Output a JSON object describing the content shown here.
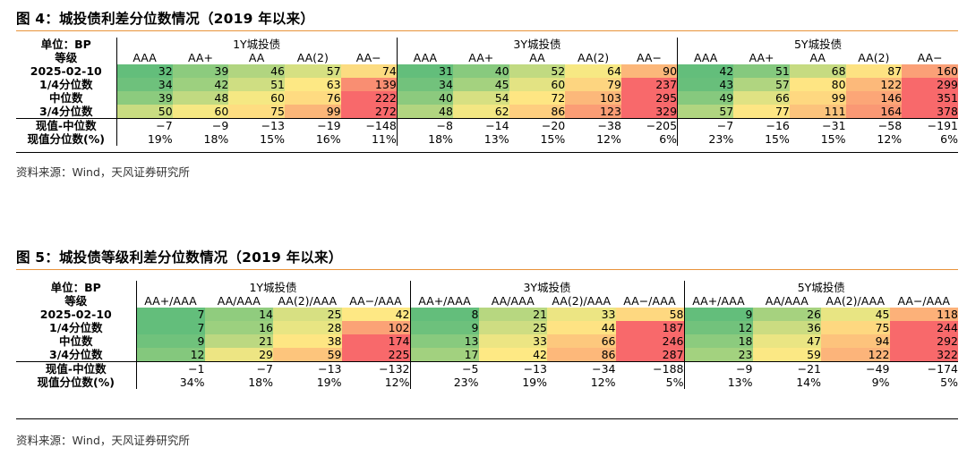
{
  "figures": [
    {
      "title": "图 4：城投债利差分位数情况（2019 年以来）",
      "source": "资料来源：Wind，天风证券研究所",
      "unit_label": "单位：BP",
      "grade_label": "等级",
      "groups": [
        "1Y城投债",
        "3Y城投债",
        "5Y城投债"
      ],
      "subcols": [
        [
          "AAA",
          "AA+",
          "AA",
          "AA(2)",
          "AA−"
        ],
        [
          "AAA",
          "AA+",
          "AA",
          "AA(2)",
          "AA−"
        ],
        [
          "AAA",
          "AA+",
          "AA",
          "AA(2)",
          "AA−"
        ]
      ],
      "rows": [
        {
          "label": "2025-02-10",
          "values": [
            32,
            39,
            46,
            57,
            74,
            31,
            40,
            52,
            64,
            90,
            42,
            51,
            68,
            87,
            160
          ],
          "colors": [
            "#63be7b",
            "#8ccb7e",
            "#b1d580",
            "#d6e082",
            "#fcdc81",
            "#63be7b",
            "#88ca7e",
            "#c1da81",
            "#f7e883",
            "#fcb77a",
            "#63be7b",
            "#85c97e",
            "#c6db81",
            "#fde282",
            "#fba077"
          ]
        },
        {
          "label": "1/4分位数",
          "values": [
            34,
            42,
            51,
            63,
            139,
            34,
            45,
            60,
            79,
            237,
            43,
            57,
            80,
            122,
            299
          ],
          "colors": [
            "#6ec17c",
            "#9dd07f",
            "#cfde82",
            "#fde884",
            "#f98e72",
            "#72c27c",
            "#a4d27f",
            "#e3e383",
            "#fdd580",
            "#f8696b",
            "#68bf7b",
            "#b0d580",
            "#fee583",
            "#fcb97a",
            "#f8696b"
          ]
        },
        {
          "label": "中位数",
          "values": [
            39,
            48,
            60,
            76,
            222,
            40,
            54,
            72,
            103,
            295,
            49,
            66,
            99,
            146,
            351
          ],
          "colors": [
            "#8ccb7e",
            "#c1da81",
            "#f5e883",
            "#fedb81",
            "#f8696b",
            "#8cca7e",
            "#d7e082",
            "#fee683",
            "#fcb87a",
            "#f8696b",
            "#86c97e",
            "#dfe283",
            "#fed880",
            "#fca677",
            "#f8696b"
          ]
        },
        {
          "label": "3/4分位数",
          "values": [
            50,
            60,
            75,
            99,
            272,
            48,
            62,
            86,
            123,
            329,
            57,
            77,
            111,
            164,
            378
          ],
          "colors": [
            "#c9dc81",
            "#f6e883",
            "#fedd81",
            "#fbb679",
            "#f8696b",
            "#b2d580",
            "#f3e783",
            "#fece7f",
            "#fb9d75",
            "#f8696b",
            "#b0d580",
            "#fde684",
            "#fcc37c",
            "#fa9874",
            "#f8696b"
          ]
        }
      ],
      "diff_row": {
        "label": "现值-中位数",
        "values": [
          "−7",
          "−9",
          "−13",
          "−19",
          "−148",
          "−8",
          "−14",
          "−20",
          "−38",
          "−205",
          "−7",
          "−16",
          "−31",
          "−58",
          "−191"
        ]
      },
      "pct_row": {
        "label": "现值分位数(%)",
        "values": [
          "19%",
          "18%",
          "15%",
          "16%",
          "11%",
          "18%",
          "13%",
          "15%",
          "12%",
          "6%",
          "23%",
          "15%",
          "15%",
          "12%",
          "6%"
        ]
      }
    },
    {
      "title": "图 5：城投债等级利差分位数情况（2019 年以来）",
      "source": "资料来源：Wind，天风证券研究所",
      "unit_label": "单位：BP",
      "grade_label": "等级",
      "groups": [
        "1Y城投债",
        "3Y城投债",
        "5Y城投债"
      ],
      "subcols": [
        [
          "AA+/AAA",
          "AA/AAA",
          "AA(2)/AAA",
          "AA−/AAA"
        ],
        [
          "AA+/AAA",
          "AA/AAA",
          "AA(2)/AAA",
          "AA−/AAA"
        ],
        [
          "AA+/AAA",
          "AA/AAA",
          "AA(2)/AAA",
          "AA−/AAA"
        ]
      ],
      "rows": [
        {
          "label": "2025-02-10",
          "values": [
            7,
            14,
            25,
            42,
            8,
            21,
            33,
            58,
            9,
            26,
            45,
            118
          ],
          "colors": [
            "#63be7b",
            "#90cc7e",
            "#d7e082",
            "#fee884",
            "#63be7b",
            "#b7d780",
            "#ece583",
            "#fed880",
            "#63be7b",
            "#a6d27f",
            "#e8e583",
            "#fcb179"
          ]
        },
        {
          "label": "1/4分位数",
          "values": [
            7,
            16,
            28,
            102,
            9,
            25,
            44,
            187,
            12,
            36,
            75,
            244
          ],
          "colors": [
            "#63be7b",
            "#9cd07f",
            "#e8e583",
            "#fba276",
            "#6dc17c",
            "#cedd82",
            "#fee383",
            "#f8696b",
            "#72c27c",
            "#cbdc81",
            "#fed880",
            "#f8696b"
          ]
        },
        {
          "label": "中位数",
          "values": [
            9,
            21,
            38,
            174,
            13,
            33,
            66,
            246,
            18,
            47,
            94,
            292
          ],
          "colors": [
            "#70c27c",
            "#bcd881",
            "#fee683",
            "#f8696b",
            "#88ca7e",
            "#ece583",
            "#fdc87d",
            "#f8696b",
            "#8ccb7e",
            "#eae583",
            "#fdc37c",
            "#f8696b"
          ]
        },
        {
          "label": "3/4分位数",
          "values": [
            12,
            29,
            59,
            225,
            17,
            42,
            86,
            287,
            23,
            59,
            122,
            322
          ],
          "colors": [
            "#84c87d",
            "#ede583",
            "#fdc57c",
            "#f8696b",
            "#a2d17f",
            "#fee984",
            "#fdb87a",
            "#f8696b",
            "#a3d27f",
            "#fbe884",
            "#fcb47a",
            "#f8696b"
          ]
        }
      ],
      "diff_row": {
        "label": "现值-中位数",
        "values": [
          "−1",
          "−7",
          "−13",
          "−132",
          "−5",
          "−13",
          "−34",
          "−188",
          "−9",
          "−21",
          "−49",
          "−174"
        ]
      },
      "pct_row": {
        "label": "现值分位数(%)",
        "values": [
          "34%",
          "18%",
          "19%",
          "12%",
          "23%",
          "19%",
          "12%",
          "5%",
          "13%",
          "14%",
          "9%",
          "5%"
        ]
      }
    }
  ]
}
